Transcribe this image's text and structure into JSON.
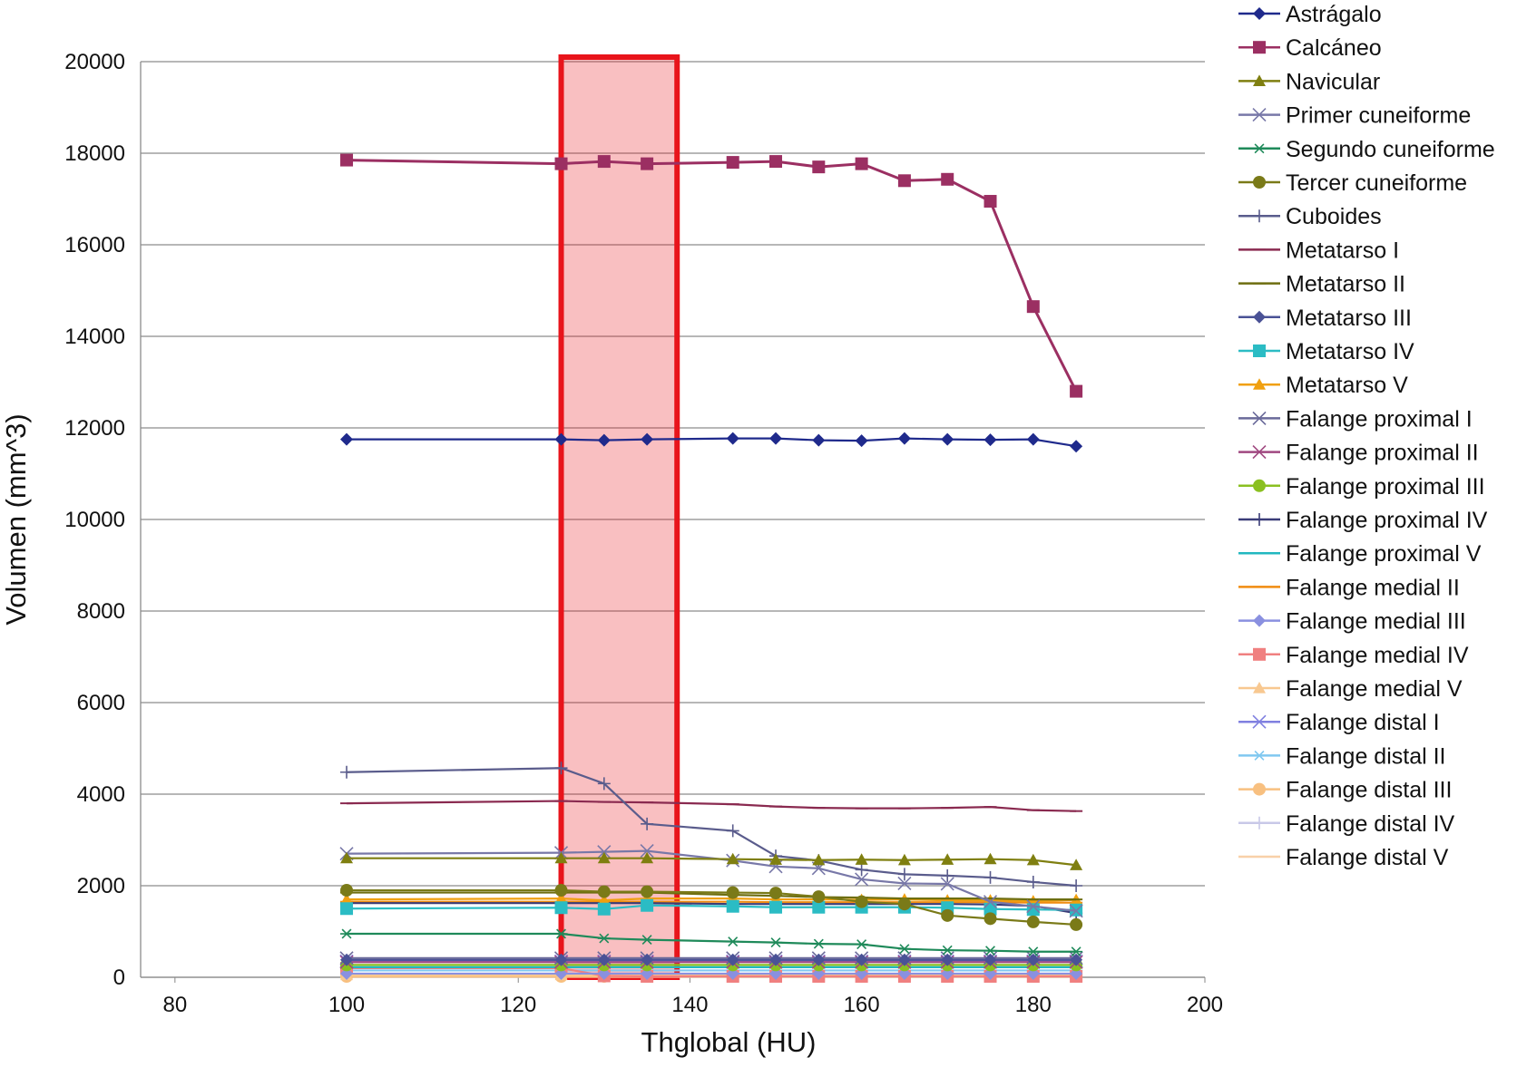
{
  "chart_data": {
    "type": "line",
    "x_label": "Thglobal (HU)",
    "y_label": "Volumen (mm^3)",
    "xlim": [
      76,
      200
    ],
    "xticks": [
      80,
      100,
      120,
      140,
      160,
      180,
      200
    ],
    "ylim": [
      0,
      20000
    ],
    "yticks": [
      0,
      2000,
      4000,
      6000,
      8000,
      10000,
      12000,
      14000,
      16000,
      18000,
      20000
    ],
    "grid": true,
    "legend": "right",
    "highlight": {
      "x": [
        125,
        138.5
      ],
      "color": "#e8141b"
    },
    "x": [
      100,
      125,
      130,
      135,
      145,
      150,
      155,
      160,
      165,
      170,
      175,
      180,
      185
    ],
    "series": [
      {
        "name": "Astrágalo",
        "color": "#1f2a8c",
        "marker": "diamond",
        "values": [
          11750,
          11750,
          11730,
          11750,
          11770,
          11770,
          11730,
          11720,
          11770,
          11750,
          11740,
          11750,
          11600
        ]
      },
      {
        "name": "Calcáneo",
        "color": "#9b2f62",
        "marker": "square",
        "values": [
          17850,
          17770,
          17820,
          17770,
          17800,
          17820,
          17700,
          17770,
          17400,
          17430,
          16950,
          14650,
          12800
        ]
      },
      {
        "name": "Navicular",
        "color": "#7f7f10",
        "marker": "triangle",
        "values": [
          2600,
          2600,
          2600,
          2600,
          2580,
          2570,
          2560,
          2570,
          2560,
          2570,
          2580,
          2560,
          2450
        ]
      },
      {
        "name": "Primer cuneiforme",
        "color": "#7878a8",
        "marker": "x",
        "values": [
          2700,
          2720,
          2740,
          2760,
          2550,
          2420,
          2380,
          2140,
          2050,
          2040,
          1650,
          1550,
          1450
        ]
      },
      {
        "name": "Segundo cuneiforme",
        "color": "#1f8a5a",
        "marker": "star",
        "values": [
          950,
          950,
          850,
          820,
          780,
          760,
          730,
          720,
          620,
          590,
          580,
          560,
          560
        ]
      },
      {
        "name": "Tercer cuneiforme",
        "color": "#7a7a18",
        "marker": "circle",
        "values": [
          1900,
          1900,
          1870,
          1870,
          1850,
          1840,
          1760,
          1650,
          1600,
          1350,
          1280,
          1210,
          1150
        ]
      },
      {
        "name": "Cuboides",
        "color": "#5a5c8c",
        "marker": "plus",
        "values": [
          4480,
          4570,
          4230,
          3350,
          3200,
          2650,
          2550,
          2350,
          2250,
          2220,
          2180,
          2080,
          2000
        ]
      },
      {
        "name": "Metatarso I",
        "color": "#8a2a50",
        "marker": "dash",
        "values": [
          3800,
          3850,
          3830,
          3820,
          3780,
          3730,
          3700,
          3690,
          3690,
          3700,
          3720,
          3650,
          3630
        ]
      },
      {
        "name": "Metatarso II",
        "color": "#6e6e10",
        "marker": "dash",
        "values": [
          1850,
          1850,
          1850,
          1850,
          1800,
          1780,
          1750,
          1740,
          1720,
          1720,
          1720,
          1700,
          1700
        ]
      },
      {
        "name": "Metatarso III",
        "color": "#4a5296",
        "marker": "diamond",
        "values": [
          380,
          380,
          380,
          380,
          380,
          380,
          380,
          380,
          380,
          380,
          380,
          380,
          380
        ]
      },
      {
        "name": "Metatarso IV",
        "color": "#2bbcc4",
        "marker": "square",
        "values": [
          1500,
          1520,
          1490,
          1570,
          1550,
          1530,
          1530,
          1530,
          1530,
          1520,
          1490,
          1480,
          1470
        ]
      },
      {
        "name": "Metatarso V",
        "color": "#f0a010",
        "marker": "triangle",
        "values": [
          1700,
          1720,
          1680,
          1720,
          1720,
          1700,
          1700,
          1690,
          1700,
          1680,
          1680,
          1660,
          1690
        ]
      },
      {
        "name": "Falange proximal I",
        "color": "#6a6a9a",
        "marker": "x",
        "values": [
          420,
          420,
          420,
          420,
          420,
          420,
          420,
          420,
          420,
          420,
          420,
          420,
          420
        ]
      },
      {
        "name": "Falange proximal II",
        "color": "#a04880",
        "marker": "x",
        "values": [
          330,
          330,
          330,
          330,
          330,
          330,
          330,
          330,
          330,
          330,
          330,
          330,
          330
        ]
      },
      {
        "name": "Falange proximal III",
        "color": "#8ac020",
        "marker": "circle",
        "values": [
          270,
          270,
          270,
          270,
          270,
          270,
          270,
          270,
          270,
          270,
          270,
          270,
          270
        ]
      },
      {
        "name": "Falange proximal IV",
        "color": "#3a3c78",
        "marker": "plus",
        "values": [
          1620,
          1620,
          1620,
          1620,
          1600,
          1600,
          1600,
          1600,
          1600,
          1600,
          1590,
          1560,
          1400
        ]
      },
      {
        "name": "Falange proximal V",
        "color": "#22b8c0",
        "marker": "dash",
        "values": [
          220,
          220,
          220,
          220,
          220,
          220,
          220,
          220,
          220,
          220,
          220,
          220,
          220
        ]
      },
      {
        "name": "Falange medial II",
        "color": "#f08c10",
        "marker": "dash",
        "values": [
          1650,
          1650,
          1650,
          1650,
          1650,
          1640,
          1640,
          1640,
          1640,
          1640,
          1640,
          1630,
          1630
        ]
      },
      {
        "name": "Falange medial III",
        "color": "#8a90e0",
        "marker": "diamond",
        "values": [
          80,
          80,
          80,
          80,
          80,
          80,
          80,
          80,
          80,
          80,
          80,
          80,
          80
        ]
      },
      {
        "name": "Falange medial IV",
        "color": "#f08080",
        "marker": "square",
        "values": [
          200,
          200,
          30,
          20,
          20,
          20,
          20,
          20,
          20,
          20,
          20,
          20,
          20
        ]
      },
      {
        "name": "Falange medial V",
        "color": "#f8c890",
        "marker": "triangle",
        "values": [
          50,
          50,
          50,
          50,
          50,
          50,
          50,
          50,
          50,
          50,
          50,
          50,
          50
        ]
      },
      {
        "name": "Falange distal I",
        "color": "#8080e0",
        "marker": "x",
        "values": [
          350,
          350,
          350,
          350,
          350,
          350,
          350,
          350,
          350,
          350,
          350,
          350,
          350
        ]
      },
      {
        "name": "Falange distal II",
        "color": "#80c8f0",
        "marker": "star",
        "values": [
          150,
          150,
          150,
          150,
          150,
          150,
          150,
          150,
          150,
          150,
          150,
          150,
          150
        ]
      },
      {
        "name": "Falange distal III",
        "color": "#f8c080",
        "marker": "circle",
        "values": [
          20,
          20,
          20,
          20,
          20,
          20,
          20,
          20,
          20,
          20,
          20,
          20,
          20
        ]
      },
      {
        "name": "Falange distal IV",
        "color": "#c8c8e8",
        "marker": "plus",
        "values": [
          60,
          60,
          60,
          60,
          60,
          60,
          60,
          60,
          60,
          60,
          60,
          60,
          60
        ]
      },
      {
        "name": "Falange distal V",
        "color": "#f8d0a8",
        "marker": "dash",
        "values": [
          10,
          10,
          10,
          10,
          10,
          10,
          10,
          10,
          10,
          10,
          10,
          10,
          10
        ]
      }
    ]
  }
}
